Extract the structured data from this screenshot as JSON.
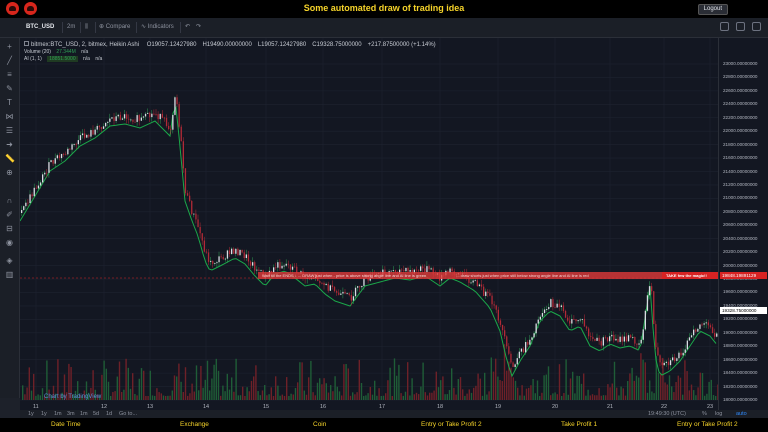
{
  "header": {
    "title": "Some automated draw of trading idea",
    "logout_label": "Logout"
  },
  "toolbar": {
    "symbol": "BTC_USD",
    "interval": "2m",
    "compare_label": "Compare",
    "indicators_label": "Indicators"
  },
  "legend": {
    "main": "bitmex:BTC_USD, 2, bitmex, Heikin Ashi",
    "open": "O19057.12427980",
    "high": "H19490.00000000",
    "low": "L19057.12427980",
    "close": "C19328.75000000",
    "change": "+217.87500000 (+1.14%)",
    "volume_label": "Volume (20)",
    "volume_value": "27.344M",
    "volume_na": "n/a",
    "ai_label": "AI (1, 1)",
    "ai_value": "18851.5000",
    "ai_na1": "n/a",
    "ai_na2": "n/a"
  },
  "price_axis": {
    "labels": [
      "23000.00000000",
      "22800.00000000",
      "22600.00000000",
      "22400.00000000",
      "22200.00000000",
      "22000.00000000",
      "21800.00000000",
      "21600.00000000",
      "21400.00000000",
      "21200.00000000",
      "21000.00000000",
      "20800.00000000",
      "20600.00000000",
      "20400.00000000",
      "20200.00000000",
      "20000.00000000",
      "19800.00000000",
      "19600.00000000",
      "19400.00000000",
      "19200.00000000",
      "19000.00000000",
      "18800.00000000",
      "18600.00000000",
      "18400.00000000",
      "18200.00000000",
      "18000.00000000"
    ],
    "current_tag": "19328.75000000",
    "red_tag": "19848.19891129"
  },
  "time_axis": {
    "labels": [
      "11",
      "12",
      "13",
      "14",
      "15",
      "16",
      "17",
      "18",
      "19",
      "20",
      "21",
      "22",
      "23"
    ],
    "clock": "19:49:30 (UTC)",
    "pct_label": "%",
    "log_label": "log",
    "auto_label": "auto"
  },
  "ranges": [
    "1y",
    "1y",
    "1m",
    "3m",
    "1m",
    "5d",
    "1d",
    "Go to..."
  ],
  "banners": {
    "first": "Wait till the ENDS ↓ ... DRAW just when - price is above strong angle line and AI line is green",
    "second": "... draw shorts just when price still below strong angle line and AI line is red",
    "third": "TAKE few the magic!!"
  },
  "watermark": "Chart by TradingView",
  "footer": {
    "columns": [
      "Date Time",
      "Exchange",
      "Coin",
      "Entry or Take Profit 2",
      "Take Profit 1",
      "Entry or Take Profit 2"
    ]
  },
  "colors": {
    "up": "#2e9d55",
    "down": "#b12a36",
    "title": "#f6d42a",
    "banner": "#d72323"
  }
}
